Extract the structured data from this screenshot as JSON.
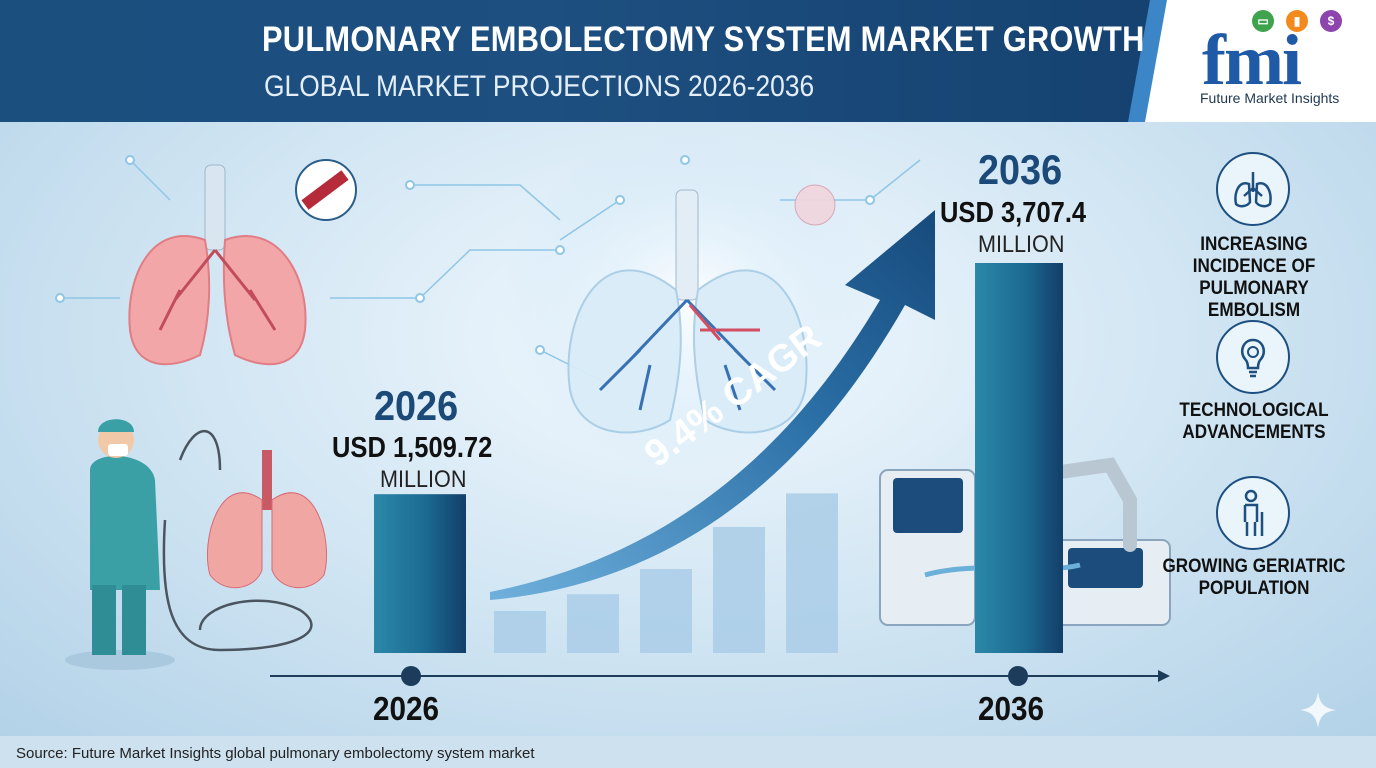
{
  "header": {
    "title": "PULMONARY EMBOLECTOMY SYSTEM MARKET GROWTH",
    "subtitle": "GLOBAL MARKET PROJECTIONS 2026-2036"
  },
  "logo": {
    "text": "fmi",
    "caption": "Future Market Insights"
  },
  "colors": {
    "header": "#1d4f80",
    "accent": "#3c86c7",
    "bar_main": "#1a5e8c",
    "bar_light": "#a9cde6",
    "logo": "#1f5aa7"
  },
  "chart_data": {
    "type": "bar",
    "title": "PULMONARY EMBOLECTOMY SYSTEM MARKET GROWTH",
    "subtitle": "GLOBAL MARKET PROJECTIONS 2026-2036",
    "x_start_label": "2026",
    "x_end_label": "2036",
    "start": {
      "year": "2026",
      "value_text": "USD 1,509.72",
      "unit": "MILLION",
      "value": 1509.72
    },
    "end": {
      "year": "2036",
      "value_text": "USD 3,707.4",
      "unit": "MILLION",
      "value": 3707.4
    },
    "cagr_text": "9.4% CAGR",
    "cagr": 9.4,
    "intermediate_relative_heights": [
      0.25,
      0.35,
      0.5,
      0.75,
      0.95
    ]
  },
  "drivers": [
    {
      "icon": "lungs-icon",
      "text": "INCREASING INCIDENCE OF PULMONARY EMBOLISM"
    },
    {
      "icon": "gear-bulb-icon",
      "text": "TECHNOLOGICAL ADVANCEMENTS"
    },
    {
      "icon": "elderly-person-icon",
      "text": "GROWING GERIATRIC POPULATION"
    }
  ],
  "footer": {
    "source": "Source: Future Market Insights global pulmonary embolectomy system market"
  }
}
